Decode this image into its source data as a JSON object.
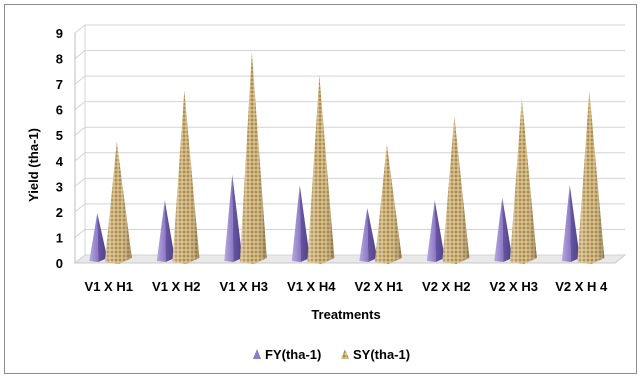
{
  "chart_data": {
    "type": "bar",
    "style": "3d-cone",
    "categories": [
      "V1 X H1",
      "V1 X H2",
      "V1 X H3",
      "V1 X H4",
      "V2 X H1",
      "V2 X H2",
      "V2 X H3",
      "V2 X H 4"
    ],
    "series": [
      {
        "name": "FY(tha-1)",
        "values": [
          1.8,
          2.3,
          3.3,
          2.9,
          2.0,
          2.3,
          2.4,
          2.9
        ]
      },
      {
        "name": "SY(tha-1)",
        "values": [
          4.6,
          6.6,
          8.1,
          7.2,
          4.5,
          5.6,
          6.3,
          6.6
        ]
      }
    ],
    "title": "",
    "xlabel": "Treatments",
    "ylabel": "Yield (tha-1)",
    "ylim": [
      0,
      9
    ],
    "yticks": [
      0,
      1,
      2,
      3,
      4,
      5,
      6,
      7,
      8,
      9
    ],
    "grid": true,
    "legend_position": "bottom",
    "colors": {
      "FY(tha-1)": "#8f7cc6",
      "SY(tha-1)": "#c4a76e"
    }
  }
}
